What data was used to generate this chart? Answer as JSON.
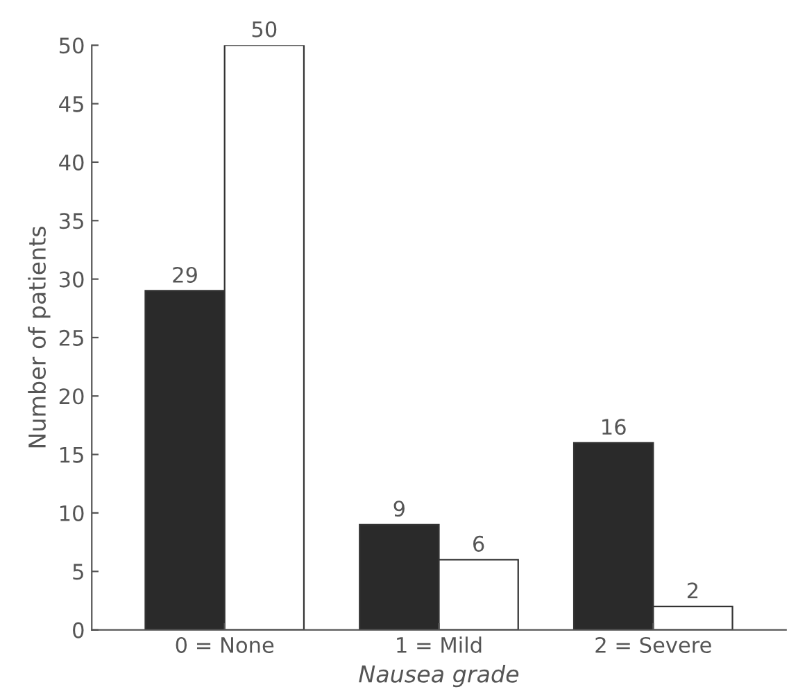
{
  "chart_data": {
    "type": "bar",
    "xlabel": "Nausea grade",
    "ylabel": "Number of patients",
    "categories": [
      "0 = None",
      "1 = Mild",
      "2 = Severe"
    ],
    "series": [
      {
        "color": "#2a2a2a",
        "values": [
          29,
          9,
          16
        ]
      },
      {
        "color": "#ffffff",
        "values": [
          50,
          6,
          2
        ]
      }
    ],
    "ylim": [
      0,
      50
    ],
    "yticks": [
      0,
      5,
      10,
      15,
      20,
      25,
      30,
      35,
      40,
      45,
      50
    ],
    "data_labels": true,
    "grid": false,
    "legend": false
  }
}
